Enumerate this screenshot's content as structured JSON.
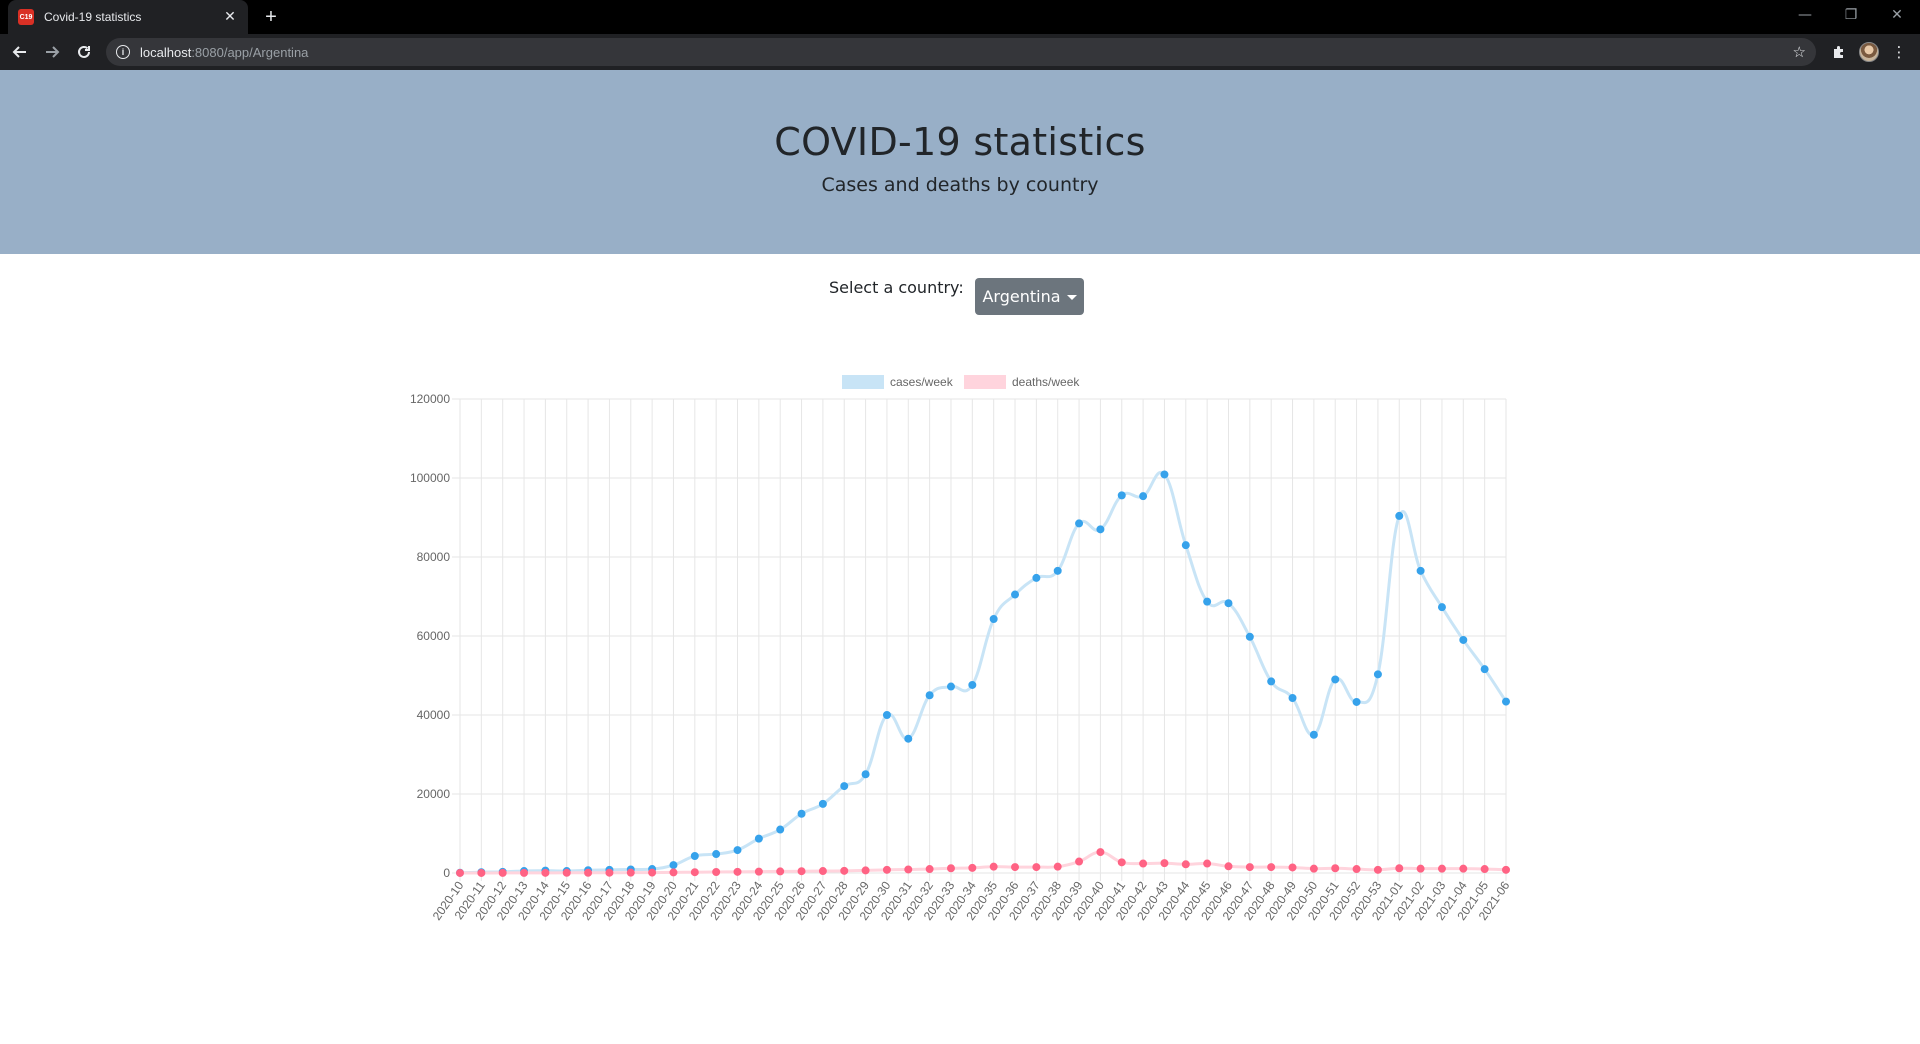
{
  "browser": {
    "tab_title": "Covid-19 statistics",
    "tab_favicon_text": "COVID 19",
    "url_host": "localhost",
    "url_rest": ":8080/app/Argentina"
  },
  "header": {
    "title": "COVID-19 statistics",
    "subtitle": "Cases and deaths by country"
  },
  "selector": {
    "label": "Select a country:",
    "selected": "Argentina"
  },
  "colors": {
    "cases_line": "#c8e4f6",
    "cases_point": "#36a2eb",
    "deaths_line": "#ffd4dd",
    "deaths_point": "#ff6384",
    "grid": "#e6e6e6",
    "hero_bg": "#98afc7",
    "dropdown_bg": "#6c757d"
  },
  "chart_data": {
    "type": "line",
    "title": "",
    "xlabel": "",
    "ylabel": "",
    "ylim": [
      0,
      120000
    ],
    "yticks": [
      0,
      20000,
      40000,
      60000,
      80000,
      100000,
      120000
    ],
    "grid": true,
    "legend_position": "top-center",
    "categories": [
      "2020-10",
      "2020-11",
      "2020-12",
      "2020-13",
      "2020-14",
      "2020-15",
      "2020-16",
      "2020-17",
      "2020-18",
      "2020-19",
      "2020-20",
      "2020-21",
      "2020-22",
      "2020-23",
      "2020-24",
      "2020-25",
      "2020-26",
      "2020-27",
      "2020-28",
      "2020-29",
      "2020-30",
      "2020-31",
      "2020-32",
      "2020-33",
      "2020-34",
      "2020-35",
      "2020-36",
      "2020-37",
      "2020-38",
      "2020-39",
      "2020-40",
      "2020-41",
      "2020-42",
      "2020-43",
      "2020-44",
      "2020-45",
      "2020-46",
      "2020-47",
      "2020-48",
      "2020-49",
      "2020-50",
      "2020-51",
      "2020-52",
      "2020-53",
      "2021-01",
      "2021-02",
      "2021-03",
      "2021-04",
      "2021-05",
      "2021-06"
    ],
    "series": [
      {
        "name": "cases/week",
        "values": [
          60,
          200,
          300,
          500,
          600,
          500,
          700,
          800,
          900,
          1000,
          2000,
          4300,
          4800,
          5800,
          8700,
          11000,
          15000,
          17500,
          22000,
          25000,
          40000,
          34000,
          45000,
          47200,
          47600,
          64300,
          70500,
          74700,
          76500,
          88500,
          87000,
          95600,
          95400,
          100900,
          83000,
          68700,
          68300,
          59800,
          48500,
          44300,
          35000,
          49000,
          43300,
          50300,
          90400,
          76500,
          67300,
          59000,
          51600,
          43400
        ]
      },
      {
        "name": "deaths/week",
        "values": [
          5,
          10,
          20,
          30,
          40,
          50,
          60,
          70,
          80,
          100,
          150,
          200,
          250,
          300,
          350,
          400,
          450,
          500,
          550,
          650,
          800,
          900,
          1000,
          1200,
          1300,
          1600,
          1500,
          1500,
          1600,
          2900,
          5300,
          2700,
          2400,
          2500,
          2200,
          2400,
          1700,
          1500,
          1500,
          1400,
          1100,
          1200,
          1000,
          800,
          1200,
          1100,
          1100,
          1100,
          1000,
          800
        ]
      }
    ]
  }
}
